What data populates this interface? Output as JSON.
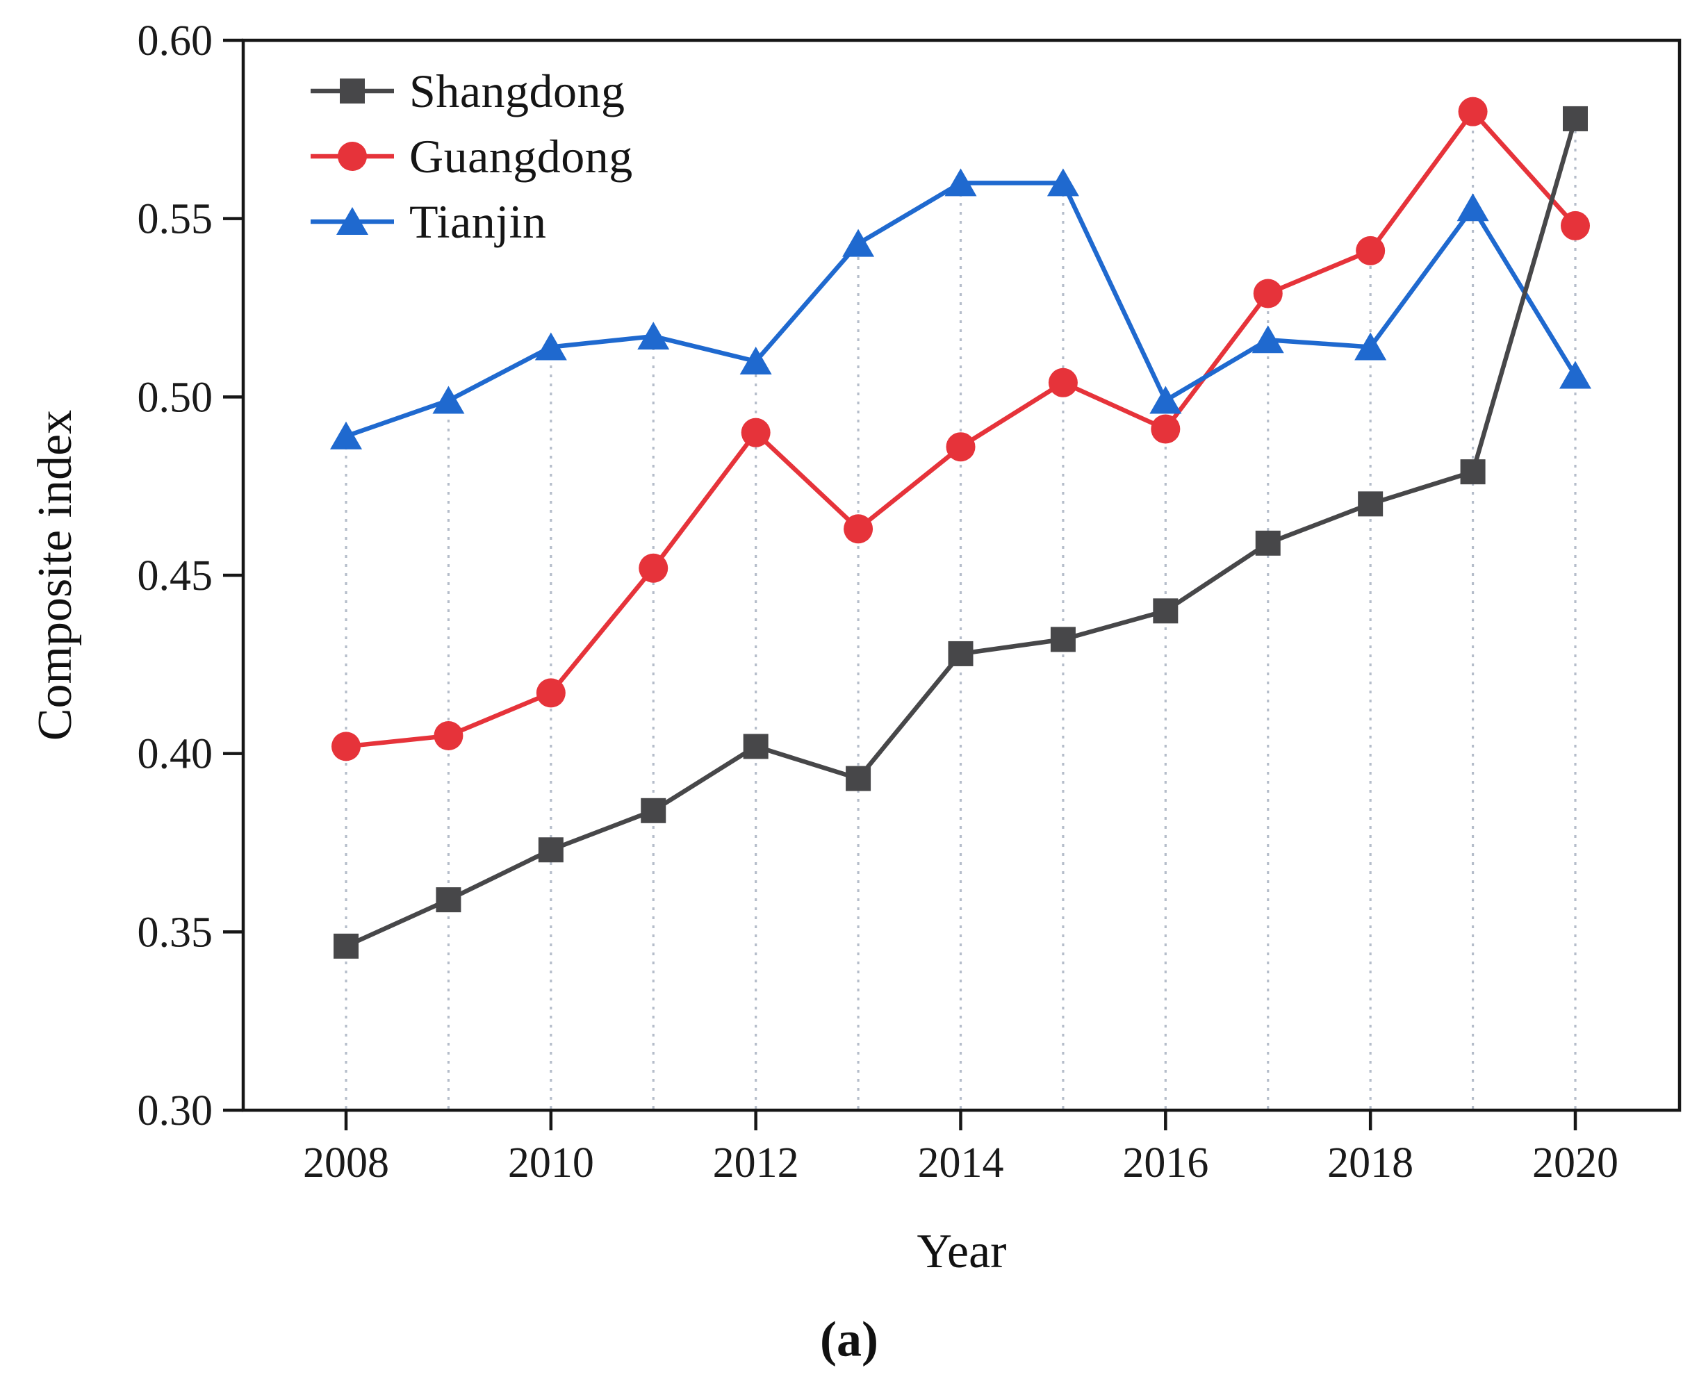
{
  "chart_data": {
    "type": "line",
    "title": "",
    "xlabel": "Year",
    "ylabel": "Composite index",
    "caption": "(a)",
    "x": [
      2008,
      2009,
      2010,
      2011,
      2012,
      2013,
      2014,
      2015,
      2016,
      2017,
      2018,
      2019,
      2020
    ],
    "x_major_ticks": [
      2008,
      2010,
      2012,
      2014,
      2016,
      2018,
      2020
    ],
    "y_ticks": [
      0.6,
      0.55,
      0.5,
      0.45,
      0.4,
      0.35,
      0.3
    ],
    "y_tick_labels": [
      "0.60",
      "0.55",
      "0.50",
      "0.45",
      "0.40",
      "0.35",
      "0.30"
    ],
    "ylim": [
      0.3,
      0.6
    ],
    "grid": "vertical-dotted-per-year",
    "legend_position": "top-left-inside",
    "series": [
      {
        "name": "Shangdong",
        "marker": "square",
        "color": "#474749",
        "values": [
          0.346,
          0.359,
          0.373,
          0.384,
          0.402,
          0.393,
          0.428,
          0.432,
          0.44,
          0.459,
          0.47,
          0.479,
          0.578
        ]
      },
      {
        "name": "Guangdong",
        "marker": "circle",
        "color": "#e6333a",
        "values": [
          0.402,
          0.405,
          0.417,
          0.452,
          0.49,
          0.463,
          0.486,
          0.504,
          0.491,
          0.529,
          0.541,
          0.58,
          0.548
        ]
      },
      {
        "name": "Tianjin",
        "marker": "triangle",
        "color": "#1f69cf",
        "values": [
          0.489,
          0.499,
          0.514,
          0.517,
          0.51,
          0.543,
          0.56,
          0.56,
          0.499,
          0.516,
          0.514,
          0.553,
          0.506
        ]
      }
    ],
    "colors": {
      "axis": "#161616",
      "grid": "#b5bdca",
      "tick_text": "#1a1a1a"
    }
  }
}
